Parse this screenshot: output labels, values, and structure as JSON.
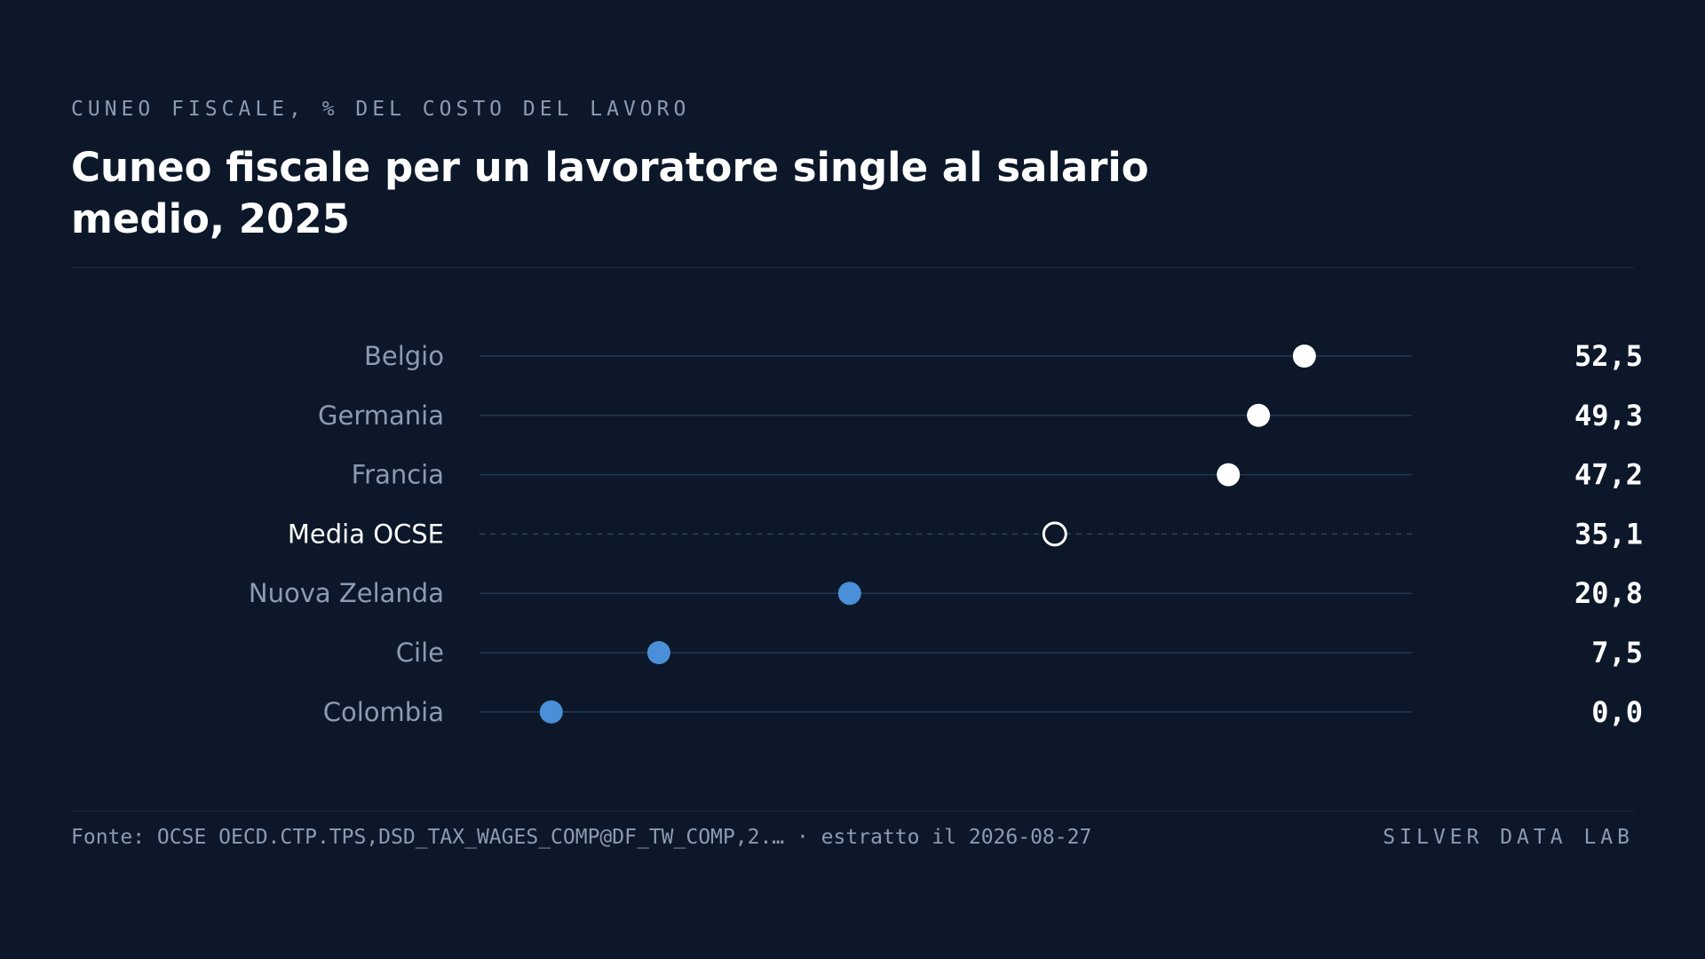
{
  "header": {
    "kicker": "CUNEO FISCALE, % DEL COSTO DEL LAVORO",
    "title": "Cuneo fiscale per un lavoratore single al salario medio, 2025"
  },
  "footer": {
    "source": "Fonte: OCSE OECD.CTP.TPS,DSD_TAX_WAGES_COMP@DF_TW_COMP,2.… · estratto il 2026-08-27",
    "brand": "SILVER DATA LAB"
  },
  "colors": {
    "background": "#0c1829",
    "high": "#ffffff",
    "low": "#4a8fd8",
    "reference": "#ffffff",
    "track": "#1f3a55",
    "label": "#8b9bb4",
    "label_highlight": "#ffffff"
  },
  "chart_data": {
    "type": "dot",
    "title": "Cuneo fiscale per un lavoratore single al salario medio, 2025",
    "xlim": [
      -5,
      60
    ],
    "grid": false,
    "legend": "none",
    "rows": [
      {
        "label": "Belgio",
        "value": 52.5,
        "display": "52,5",
        "group": "high"
      },
      {
        "label": "Germania",
        "value": 49.3,
        "display": "49,3",
        "group": "high"
      },
      {
        "label": "Francia",
        "value": 47.2,
        "display": "47,2",
        "group": "high"
      },
      {
        "label": "Media OCSE",
        "value": 35.1,
        "display": "35,1",
        "group": "reference"
      },
      {
        "label": "Nuova Zelanda",
        "value": 20.8,
        "display": "20,8",
        "group": "low"
      },
      {
        "label": "Cile",
        "value": 7.5,
        "display": "7,5",
        "group": "low"
      },
      {
        "label": "Colombia",
        "value": 0.0,
        "display": "0,0",
        "group": "low"
      }
    ]
  }
}
